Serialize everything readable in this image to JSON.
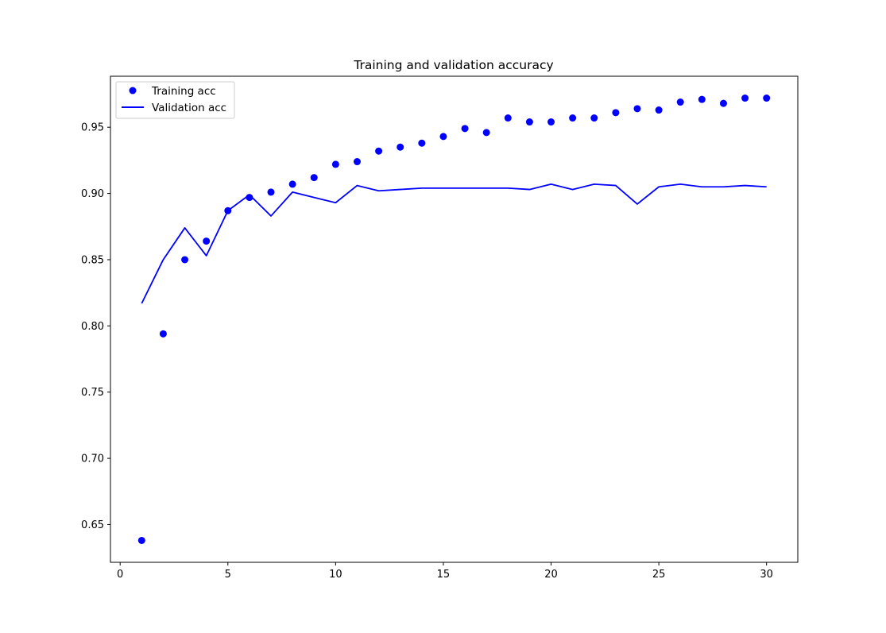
{
  "chart_data": {
    "type": "line",
    "title": "Training and validation accuracy",
    "xlabel": "",
    "ylabel": "",
    "xlim": [
      -0.45,
      31.45
    ],
    "ylim": [
      0.6215,
      0.9885
    ],
    "xticks": [
      0,
      5,
      10,
      15,
      20,
      25,
      30
    ],
    "xtick_labels": [
      "0",
      "5",
      "10",
      "15",
      "20",
      "25",
      "30"
    ],
    "yticks": [
      0.65,
      0.7,
      0.75,
      0.8,
      0.85,
      0.9,
      0.95
    ],
    "ytick_labels": [
      "0.65",
      "0.70",
      "0.75",
      "0.80",
      "0.85",
      "0.90",
      "0.95"
    ],
    "grid": false,
    "legend_position": "top-left",
    "x": [
      1,
      2,
      3,
      4,
      5,
      6,
      7,
      8,
      9,
      10,
      11,
      12,
      13,
      14,
      15,
      16,
      17,
      18,
      19,
      20,
      21,
      22,
      23,
      24,
      25,
      26,
      27,
      28,
      29,
      30
    ],
    "series": [
      {
        "name": "Training acc",
        "style": "markers",
        "color": "#0000ff",
        "values": [
          0.638,
          0.794,
          0.85,
          0.864,
          0.887,
          0.897,
          0.901,
          0.907,
          0.912,
          0.922,
          0.924,
          0.932,
          0.935,
          0.938,
          0.943,
          0.949,
          0.946,
          0.957,
          0.954,
          0.954,
          0.957,
          0.957,
          0.961,
          0.964,
          0.963,
          0.969,
          0.971,
          0.968,
          0.972,
          0.972
        ]
      },
      {
        "name": "Validation acc",
        "style": "line",
        "color": "#0000ff",
        "values": [
          0.817,
          0.85,
          0.874,
          0.853,
          0.887,
          0.899,
          0.883,
          0.901,
          0.897,
          0.893,
          0.906,
          0.902,
          0.903,
          0.904,
          0.904,
          0.904,
          0.904,
          0.904,
          0.903,
          0.907,
          0.903,
          0.907,
          0.906,
          0.892,
          0.905,
          0.907,
          0.905,
          0.905,
          0.906,
          0.905
        ]
      }
    ]
  }
}
